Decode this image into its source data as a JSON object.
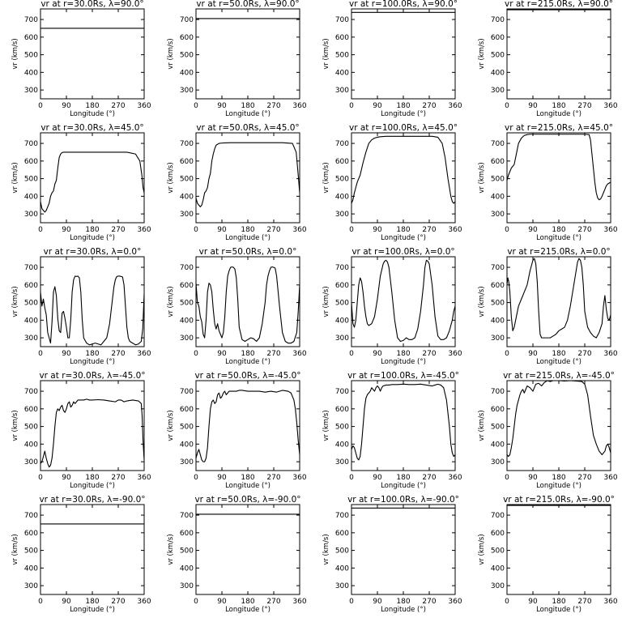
{
  "figure": {
    "xlabel": "Longitude (°)",
    "ylabel": "vr (km/s)",
    "xticks": [
      0,
      90,
      180,
      270,
      360
    ],
    "xtick_labels": [
      "0",
      "90",
      "180",
      "270",
      "360"
    ],
    "yticks": [
      300,
      400,
      500,
      600,
      700
    ],
    "ytick_labels": [
      "300",
      "400",
      "500",
      "600",
      "700"
    ],
    "xlim": [
      0,
      360
    ],
    "ylim": [
      250,
      760
    ]
  },
  "chart_data": [
    {
      "type": "line",
      "title": "vr at r=30.0Rs, λ=90.0°",
      "x": [
        0,
        360
      ],
      "y": [
        650,
        650
      ]
    },
    {
      "type": "line",
      "title": "vr at r=50.0Rs, λ=90.0°",
      "x": [
        0,
        360
      ],
      "y": [
        705,
        705
      ]
    },
    {
      "type": "line",
      "title": "vr at r=100.0Rs, λ=90.0°",
      "x": [
        0,
        360
      ],
      "y": [
        740,
        740
      ]
    },
    {
      "type": "line",
      "title": "vr at r=215.0Rs, λ=90.0°",
      "x": [
        0,
        360
      ],
      "y": [
        755,
        755
      ]
    },
    {
      "type": "line",
      "title": "vr at r=30.0Rs, λ=45.0°",
      "x": [
        0,
        5,
        10,
        15,
        20,
        25,
        30,
        35,
        40,
        45,
        50,
        55,
        60,
        65,
        70,
        75,
        80,
        90,
        100,
        120,
        180,
        250,
        300,
        330,
        345,
        352,
        356,
        360
      ],
      "y": [
        370,
        330,
        320,
        310,
        320,
        340,
        360,
        400,
        420,
        430,
        470,
        490,
        560,
        620,
        640,
        648,
        650,
        650,
        650,
        650,
        650,
        650,
        650,
        640,
        600,
        520,
        450,
        420
      ]
    },
    {
      "type": "line",
      "title": "vr at r=50.0Rs, λ=45.0°",
      "x": [
        0,
        5,
        10,
        15,
        20,
        25,
        30,
        35,
        40,
        45,
        50,
        55,
        60,
        65,
        70,
        80,
        90,
        100,
        120,
        200,
        300,
        335,
        348,
        355,
        360
      ],
      "y": [
        390,
        360,
        350,
        340,
        350,
        380,
        420,
        430,
        450,
        500,
        530,
        600,
        640,
        670,
        690,
        700,
        702,
        703,
        704,
        704,
        704,
        700,
        650,
        520,
        420
      ]
    },
    {
      "type": "line",
      "title": "vr at r=100.0Rs, λ=45.0°",
      "x": [
        0,
        5,
        10,
        15,
        20,
        25,
        30,
        40,
        50,
        60,
        70,
        80,
        90,
        100,
        120,
        200,
        280,
        300,
        315,
        325,
        335,
        340,
        345,
        350,
        355,
        360
      ],
      "y": [
        360,
        380,
        420,
        450,
        480,
        500,
        520,
        590,
        650,
        700,
        720,
        730,
        735,
        738,
        740,
        740,
        740,
        735,
        700,
        620,
        500,
        450,
        400,
        370,
        360,
        370
      ]
    },
    {
      "type": "line",
      "title": "vr at r=215.0Rs, λ=45.0°",
      "x": [
        0,
        5,
        10,
        15,
        20,
        25,
        30,
        35,
        40,
        50,
        60,
        70,
        80,
        90,
        120,
        200,
        270,
        285,
        290,
        295,
        300,
        305,
        310,
        315,
        320,
        325,
        330,
        335,
        340,
        345,
        350,
        355,
        360
      ],
      "y": [
        490,
        520,
        540,
        560,
        570,
        580,
        620,
        660,
        700,
        730,
        745,
        750,
        752,
        752,
        752,
        752,
        752,
        750,
        720,
        640,
        560,
        480,
        420,
        390,
        380,
        385,
        400,
        420,
        440,
        460,
        470,
        475,
        480
      ]
    },
    {
      "type": "line",
      "title": "vr at r=30.0Rs, λ=0.0°",
      "x": [
        0,
        5,
        10,
        15,
        20,
        25,
        30,
        35,
        40,
        45,
        50,
        55,
        60,
        65,
        70,
        75,
        80,
        85,
        90,
        95,
        100,
        105,
        110,
        115,
        120,
        125,
        130,
        135,
        140,
        145,
        150,
        160,
        170,
        180,
        190,
        200,
        210,
        220,
        230,
        240,
        245,
        250,
        255,
        260,
        265,
        270,
        275,
        280,
        285,
        290,
        295,
        300,
        305,
        310,
        320,
        330,
        340,
        350,
        355,
        360
      ],
      "y": [
        560,
        480,
        520,
        470,
        430,
        330,
        300,
        270,
        390,
        560,
        590,
        540,
        410,
        340,
        330,
        440,
        450,
        410,
        360,
        300,
        300,
        400,
        560,
        630,
        650,
        648,
        650,
        640,
        560,
        400,
        300,
        270,
        260,
        265,
        270,
        265,
        260,
        280,
        300,
        380,
        450,
        520,
        590,
        630,
        648,
        650,
        650,
        648,
        645,
        600,
        480,
        360,
        300,
        280,
        270,
        260,
        265,
        280,
        350,
        550
      ]
    },
    {
      "type": "line",
      "title": "vr at r=50.0Rs, λ=0.0°",
      "x": [
        0,
        5,
        10,
        15,
        20,
        25,
        30,
        35,
        40,
        45,
        50,
        55,
        60,
        65,
        70,
        75,
        80,
        85,
        90,
        95,
        100,
        105,
        110,
        115,
        120,
        125,
        130,
        135,
        140,
        145,
        150,
        160,
        170,
        180,
        190,
        200,
        210,
        220,
        230,
        240,
        245,
        250,
        255,
        260,
        265,
        270,
        275,
        280,
        290,
        300,
        310,
        320,
        330,
        340,
        350,
        355,
        360
      ],
      "y": [
        610,
        500,
        480,
        420,
        390,
        320,
        300,
        400,
        560,
        610,
        600,
        560,
        460,
        380,
        350,
        380,
        340,
        320,
        300,
        330,
        420,
        560,
        650,
        680,
        700,
        702,
        700,
        690,
        640,
        520,
        360,
        290,
        280,
        290,
        300,
        295,
        280,
        300,
        380,
        500,
        600,
        650,
        680,
        700,
        702,
        700,
        695,
        650,
        480,
        330,
        280,
        270,
        270,
        280,
        330,
        450,
        600
      ]
    },
    {
      "type": "line",
      "title": "vr at r=100.0Rs, λ=0.0°",
      "x": [
        0,
        5,
        10,
        15,
        20,
        25,
        30,
        35,
        40,
        45,
        50,
        55,
        60,
        70,
        80,
        90,
        100,
        110,
        115,
        120,
        125,
        130,
        140,
        150,
        160,
        170,
        180,
        190,
        200,
        210,
        220,
        230,
        240,
        250,
        255,
        260,
        265,
        270,
        280,
        290,
        300,
        310,
        320,
        330,
        340,
        350,
        355,
        360
      ],
      "y": [
        500,
        380,
        360,
        400,
        500,
        600,
        640,
        620,
        560,
        480,
        420,
        380,
        370,
        380,
        420,
        520,
        650,
        720,
        735,
        740,
        730,
        700,
        560,
        400,
        300,
        280,
        285,
        300,
        290,
        290,
        300,
        350,
        450,
        600,
        700,
        740,
        735,
        720,
        600,
        420,
        310,
        290,
        290,
        300,
        340,
        400,
        450,
        480
      ]
    },
    {
      "type": "line",
      "title": "vr at r=215.0Rs, λ=0.0°",
      "x": [
        0,
        3,
        6,
        10,
        15,
        20,
        25,
        30,
        35,
        40,
        50,
        60,
        70,
        80,
        90,
        95,
        100,
        105,
        110,
        115,
        120,
        130,
        140,
        150,
        160,
        170,
        180,
        190,
        200,
        210,
        220,
        230,
        240,
        245,
        250,
        255,
        260,
        265,
        270,
        280,
        290,
        300,
        310,
        320,
        330,
        335,
        340,
        345,
        350,
        355,
        360
      ],
      "y": [
        600,
        640,
        620,
        560,
        420,
        340,
        360,
        400,
        440,
        480,
        520,
        560,
        600,
        680,
        740,
        750,
        720,
        620,
        450,
        320,
        300,
        300,
        300,
        300,
        310,
        320,
        340,
        350,
        360,
        400,
        480,
        580,
        680,
        730,
        750,
        740,
        700,
        600,
        450,
        360,
        330,
        310,
        300,
        330,
        380,
        480,
        540,
        460,
        410,
        400,
        430
      ]
    },
    {
      "type": "line",
      "title": "vr at r=30.0Rs, λ=-45.0°",
      "x": [
        0,
        5,
        10,
        15,
        20,
        25,
        30,
        35,
        40,
        45,
        50,
        55,
        60,
        65,
        70,
        75,
        80,
        85,
        90,
        95,
        100,
        105,
        110,
        115,
        120,
        125,
        130,
        140,
        150,
        160,
        170,
        180,
        200,
        220,
        240,
        260,
        270,
        280,
        290,
        300,
        320,
        340,
        350,
        353,
        356,
        360
      ],
      "y": [
        290,
        300,
        330,
        360,
        320,
        290,
        270,
        280,
        320,
        400,
        500,
        580,
        600,
        590,
        610,
        620,
        590,
        580,
        600,
        630,
        640,
        610,
        620,
        640,
        630,
        640,
        650,
        650,
        650,
        655,
        650,
        650,
        652,
        650,
        645,
        640,
        650,
        650,
        640,
        645,
        650,
        645,
        630,
        560,
        420,
        310
      ]
    },
    {
      "type": "line",
      "title": "vr at r=50.0Rs, λ=-45.0°",
      "x": [
        0,
        5,
        10,
        15,
        20,
        25,
        30,
        35,
        40,
        45,
        50,
        55,
        60,
        65,
        70,
        75,
        80,
        85,
        90,
        95,
        100,
        105,
        110,
        115,
        120,
        130,
        140,
        150,
        160,
        180,
        200,
        220,
        240,
        260,
        280,
        300,
        320,
        330,
        340,
        345,
        350,
        355,
        360
      ],
      "y": [
        320,
        350,
        370,
        340,
        310,
        300,
        300,
        320,
        380,
        500,
        600,
        640,
        650,
        630,
        640,
        680,
        690,
        660,
        670,
        690,
        700,
        680,
        690,
        700,
        700,
        700,
        700,
        705,
        705,
        700,
        700,
        700,
        695,
        700,
        695,
        705,
        700,
        690,
        650,
        600,
        520,
        420,
        340
      ]
    },
    {
      "type": "line",
      "title": "vr at r=100.0Rs, λ=-45.0°",
      "x": [
        0,
        5,
        10,
        15,
        20,
        25,
        30,
        35,
        40,
        45,
        50,
        55,
        60,
        65,
        70,
        75,
        80,
        85,
        90,
        95,
        100,
        105,
        110,
        120,
        130,
        140,
        160,
        180,
        200,
        220,
        240,
        260,
        280,
        290,
        300,
        310,
        320,
        330,
        340,
        345,
        350,
        355,
        360
      ],
      "y": [
        370,
        390,
        380,
        350,
        320,
        310,
        330,
        400,
        500,
        600,
        660,
        680,
        690,
        700,
        720,
        710,
        700,
        720,
        730,
        720,
        700,
        720,
        730,
        735,
        735,
        738,
        738,
        740,
        738,
        738,
        740,
        735,
        730,
        735,
        740,
        735,
        720,
        650,
        500,
        400,
        350,
        330,
        340
      ]
    },
    {
      "type": "line",
      "title": "vr at r=215.0Rs, λ=-45.0°",
      "x": [
        0,
        5,
        10,
        15,
        20,
        25,
        30,
        35,
        40,
        45,
        50,
        55,
        60,
        70,
        80,
        90,
        100,
        110,
        120,
        130,
        140,
        150,
        160,
        180,
        200,
        220,
        240,
        260,
        270,
        280,
        290,
        300,
        310,
        320,
        330,
        340,
        345,
        350,
        355,
        360
      ],
      "y": [
        340,
        330,
        340,
        380,
        430,
        500,
        570,
        620,
        650,
        680,
        700,
        710,
        690,
        730,
        720,
        700,
        740,
        745,
        730,
        750,
        760,
        755,
        760,
        760,
        758,
        760,
        758,
        755,
        740,
        680,
        560,
        450,
        400,
        360,
        340,
        360,
        390,
        400,
        380,
        350
      ]
    },
    {
      "type": "line",
      "title": "vr at r=30.0Rs, λ=-90.0°",
      "x": [
        0,
        360
      ],
      "y": [
        650,
        650
      ]
    },
    {
      "type": "line",
      "title": "vr at r=50.0Rs, λ=-90.0°",
      "x": [
        0,
        360
      ],
      "y": [
        705,
        705
      ]
    },
    {
      "type": "line",
      "title": "vr at r=100.0Rs, λ=-90.0°",
      "x": [
        0,
        360
      ],
      "y": [
        740,
        740
      ]
    },
    {
      "type": "line",
      "title": "vr at r=215.0Rs, λ=-90.0°",
      "x": [
        0,
        360
      ],
      "y": [
        755,
        755
      ]
    }
  ]
}
